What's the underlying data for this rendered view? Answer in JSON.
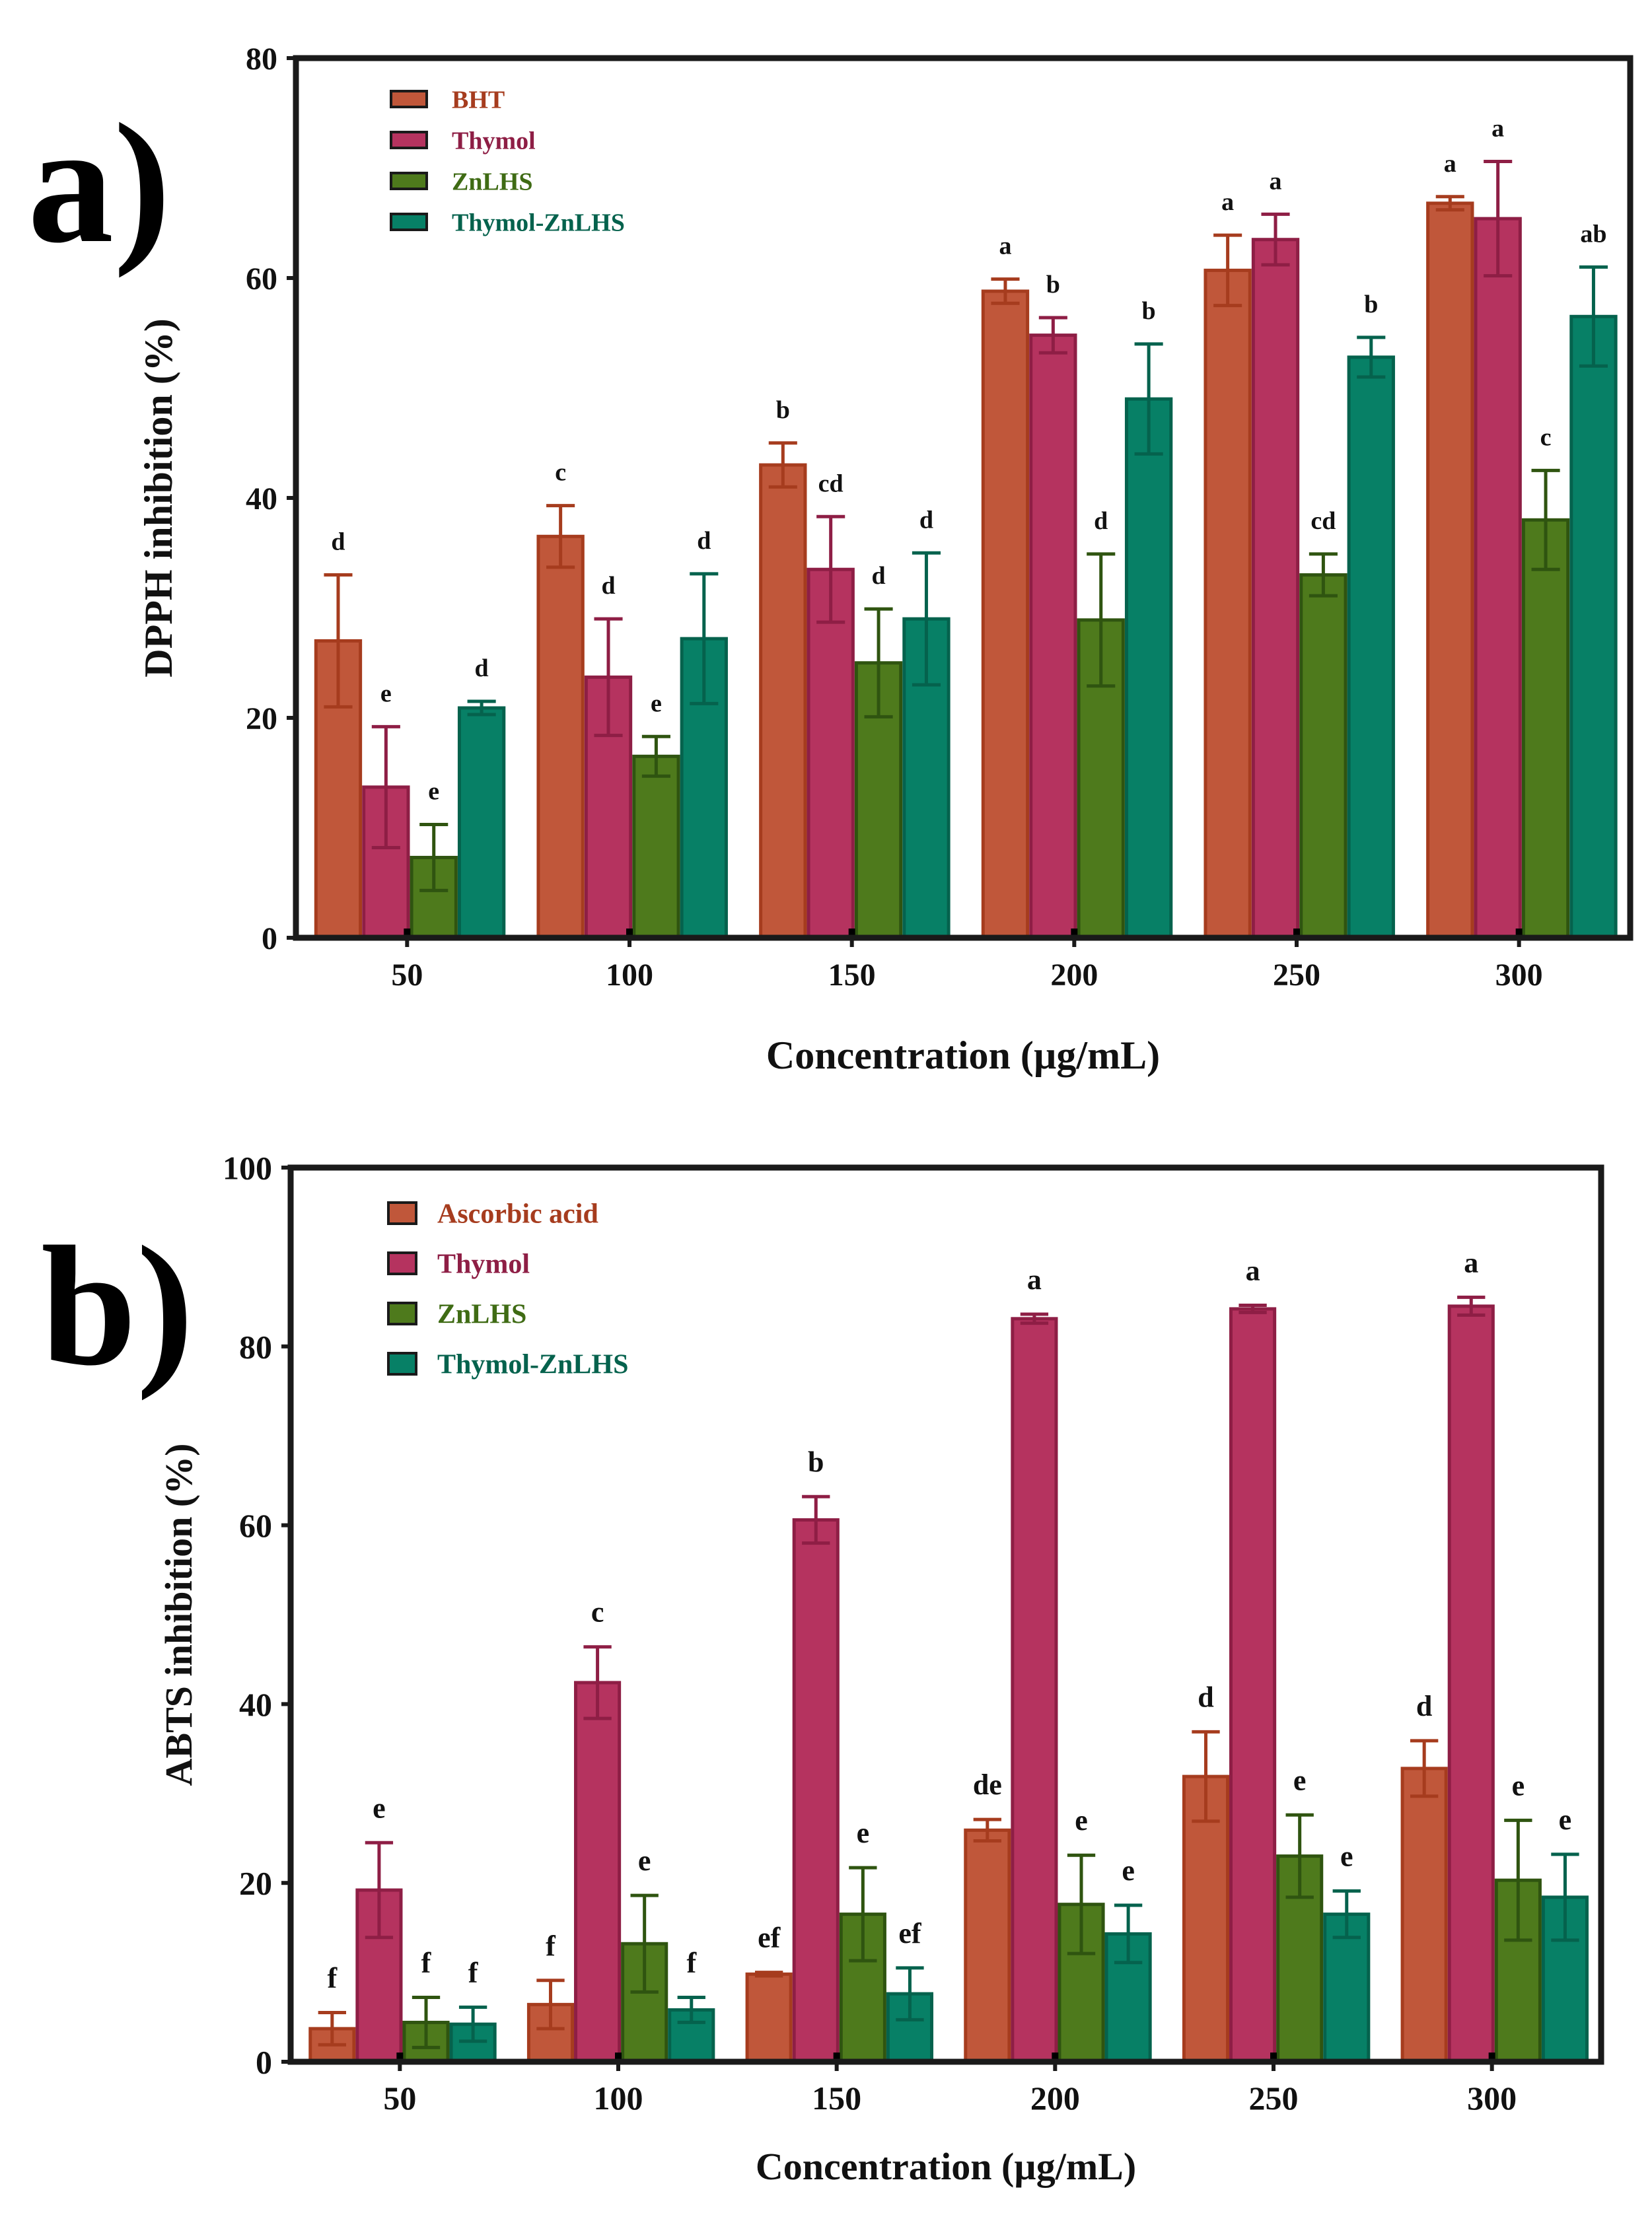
{
  "panel_labels": {
    "a": "a)",
    "b": "b)"
  },
  "colors": {
    "series": [
      "#C0573A",
      "#B5335F",
      "#4E7A1C",
      "#078066"
    ],
    "series_edge": [
      "#A63C1E",
      "#8E1E45",
      "#2F5410",
      "#05624D"
    ],
    "legend_text": [
      "#A63C1E",
      "#8E1E45",
      "#3F6B14",
      "#05624D"
    ]
  },
  "chart_data": [
    {
      "type": "bar",
      "id": "a",
      "categories": [
        "50",
        "100",
        "150",
        "200",
        "250",
        "300"
      ],
      "xlabel": "Concentration (µg/mL)",
      "ylabel": "DPPH inhibition (%)",
      "ylim": [
        0,
        80
      ],
      "yticks": [
        "0",
        "20",
        "40",
        "60",
        "80"
      ],
      "grid": false,
      "legend_position": "top-left",
      "series": [
        {
          "name": "BHT",
          "values": [
            27,
            36.5,
            43,
            58.8,
            60.7,
            66.8
          ],
          "errors": [
            6,
            2.8,
            2,
            1.1,
            3.2,
            0.6
          ],
          "letters": [
            "d",
            "c",
            "b",
            "a",
            "a",
            "a"
          ]
        },
        {
          "name": "Thymol",
          "values": [
            13.7,
            23.7,
            33.5,
            54.8,
            63.5,
            65.4
          ],
          "errors": [
            5.5,
            5.3,
            4.8,
            1.6,
            2.3,
            5.2
          ],
          "letters": [
            "e",
            "d",
            "cd",
            "b",
            "a",
            "a"
          ]
        },
        {
          "name": "ZnLHS",
          "values": [
            7.3,
            16.5,
            25,
            28.9,
            33,
            38
          ],
          "errors": [
            3,
            1.8,
            4.9,
            6,
            1.9,
            4.5
          ],
          "letters": [
            "e",
            "e",
            "d",
            "d",
            "cd",
            "c"
          ]
        },
        {
          "name": "Thymol-ZnLHS",
          "values": [
            20.9,
            27.2,
            29,
            49,
            52.8,
            56.5
          ],
          "errors": [
            0.6,
            5.9,
            6,
            5,
            1.8,
            4.5
          ],
          "letters": [
            "d",
            "d",
            "d",
            "b",
            "b",
            "ab"
          ]
        }
      ]
    },
    {
      "type": "bar",
      "id": "b",
      "categories": [
        "50",
        "100",
        "150",
        "200",
        "250",
        "300"
      ],
      "xlabel": "Concentration (µg/mL)",
      "ylabel": "ABTS inhibition (%)",
      "ylim": [
        0,
        100
      ],
      "yticks": [
        "0",
        "20",
        "40",
        "60",
        "80",
        "100"
      ],
      "grid": false,
      "legend_position": "top-left",
      "series": [
        {
          "name": "Ascorbic acid",
          "values": [
            3.7,
            6.4,
            9.8,
            25.9,
            31.9,
            32.8
          ],
          "errors": [
            1.8,
            2.7,
            0.2,
            1.2,
            5,
            3.1
          ],
          "letters": [
            "f",
            "f",
            "ef",
            "de",
            "d",
            "d"
          ]
        },
        {
          "name": "Thymol",
          "values": [
            19.2,
            42.4,
            60.6,
            83.1,
            84.2,
            84.5
          ],
          "errors": [
            5.3,
            4,
            2.6,
            0.5,
            0.4,
            1
          ],
          "letters": [
            "e",
            "c",
            "b",
            "a",
            "a",
            "a"
          ]
        },
        {
          "name": "ZnLHS",
          "values": [
            4.4,
            13.2,
            16.5,
            17.6,
            23,
            20.3
          ],
          "errors": [
            2.8,
            5.4,
            5.2,
            5.5,
            4.6,
            6.7
          ],
          "letters": [
            "f",
            "e",
            "e",
            "e",
            "e",
            "e"
          ]
        },
        {
          "name": "Thymol-ZnLHS",
          "values": [
            4.2,
            5.8,
            7.6,
            14.3,
            16.5,
            18.4
          ],
          "errors": [
            1.9,
            1.4,
            2.9,
            3.2,
            2.6,
            4.8
          ],
          "letters": [
            "f",
            "f",
            "ef",
            "e",
            "e",
            "e"
          ]
        }
      ]
    }
  ]
}
